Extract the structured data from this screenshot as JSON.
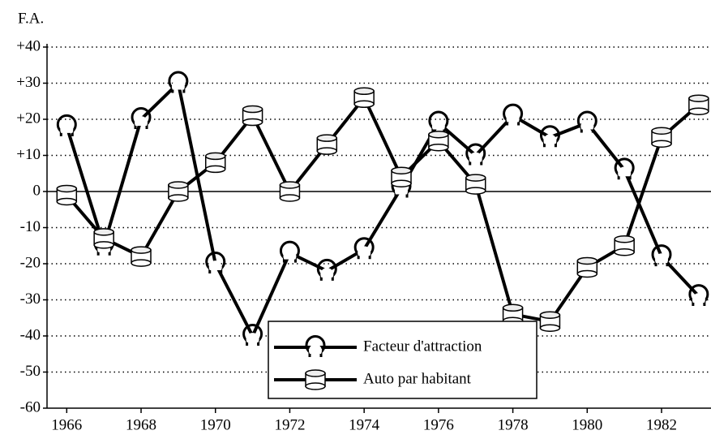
{
  "chart_data": {
    "type": "line",
    "y_label": "F.A.",
    "x": [
      1966,
      1967,
      1968,
      1969,
      1970,
      1971,
      1972,
      1973,
      1974,
      1975,
      1976,
      1977,
      1978,
      1979,
      1980,
      1981,
      1982,
      1983
    ],
    "series": [
      {
        "name": "Facteur d'attraction",
        "color": "#000000",
        "marker": "horseshoe",
        "values": [
          18,
          -15,
          20,
          30,
          -20,
          -40,
          -17,
          -22,
          -16,
          1,
          19,
          10,
          21,
          15,
          19,
          6,
          -18,
          -29
        ]
      },
      {
        "name": "Auto par habitant",
        "color": "#000000",
        "marker": "cylinder",
        "values": [
          -1,
          -13,
          -18,
          0,
          8,
          21,
          0,
          13,
          26,
          4,
          14,
          2,
          -34,
          -36,
          -21,
          -15,
          15,
          24
        ]
      }
    ],
    "xlim": [
      1965.47,
      1983.33
    ],
    "xticks": [
      1966,
      1968,
      1970,
      1972,
      1974,
      1976,
      1978,
      1980,
      1982
    ],
    "ylim": [
      -60,
      40
    ],
    "yticks": [
      {
        "value": -60,
        "label": "-60"
      },
      {
        "value": -50,
        "label": "-50"
      },
      {
        "value": -40,
        "label": "-40"
      },
      {
        "value": -30,
        "label": "-30"
      },
      {
        "value": -20,
        "label": "-20"
      },
      {
        "value": -10,
        "label": "-10"
      },
      0,
      {
        "value": 10,
        "label": "+10"
      },
      {
        "value": 20,
        "label": "+20"
      },
      {
        "value": 30,
        "label": "+30"
      },
      {
        "value": 40,
        "label": "+40"
      }
    ],
    "grid": true,
    "legend": "bottom"
  }
}
